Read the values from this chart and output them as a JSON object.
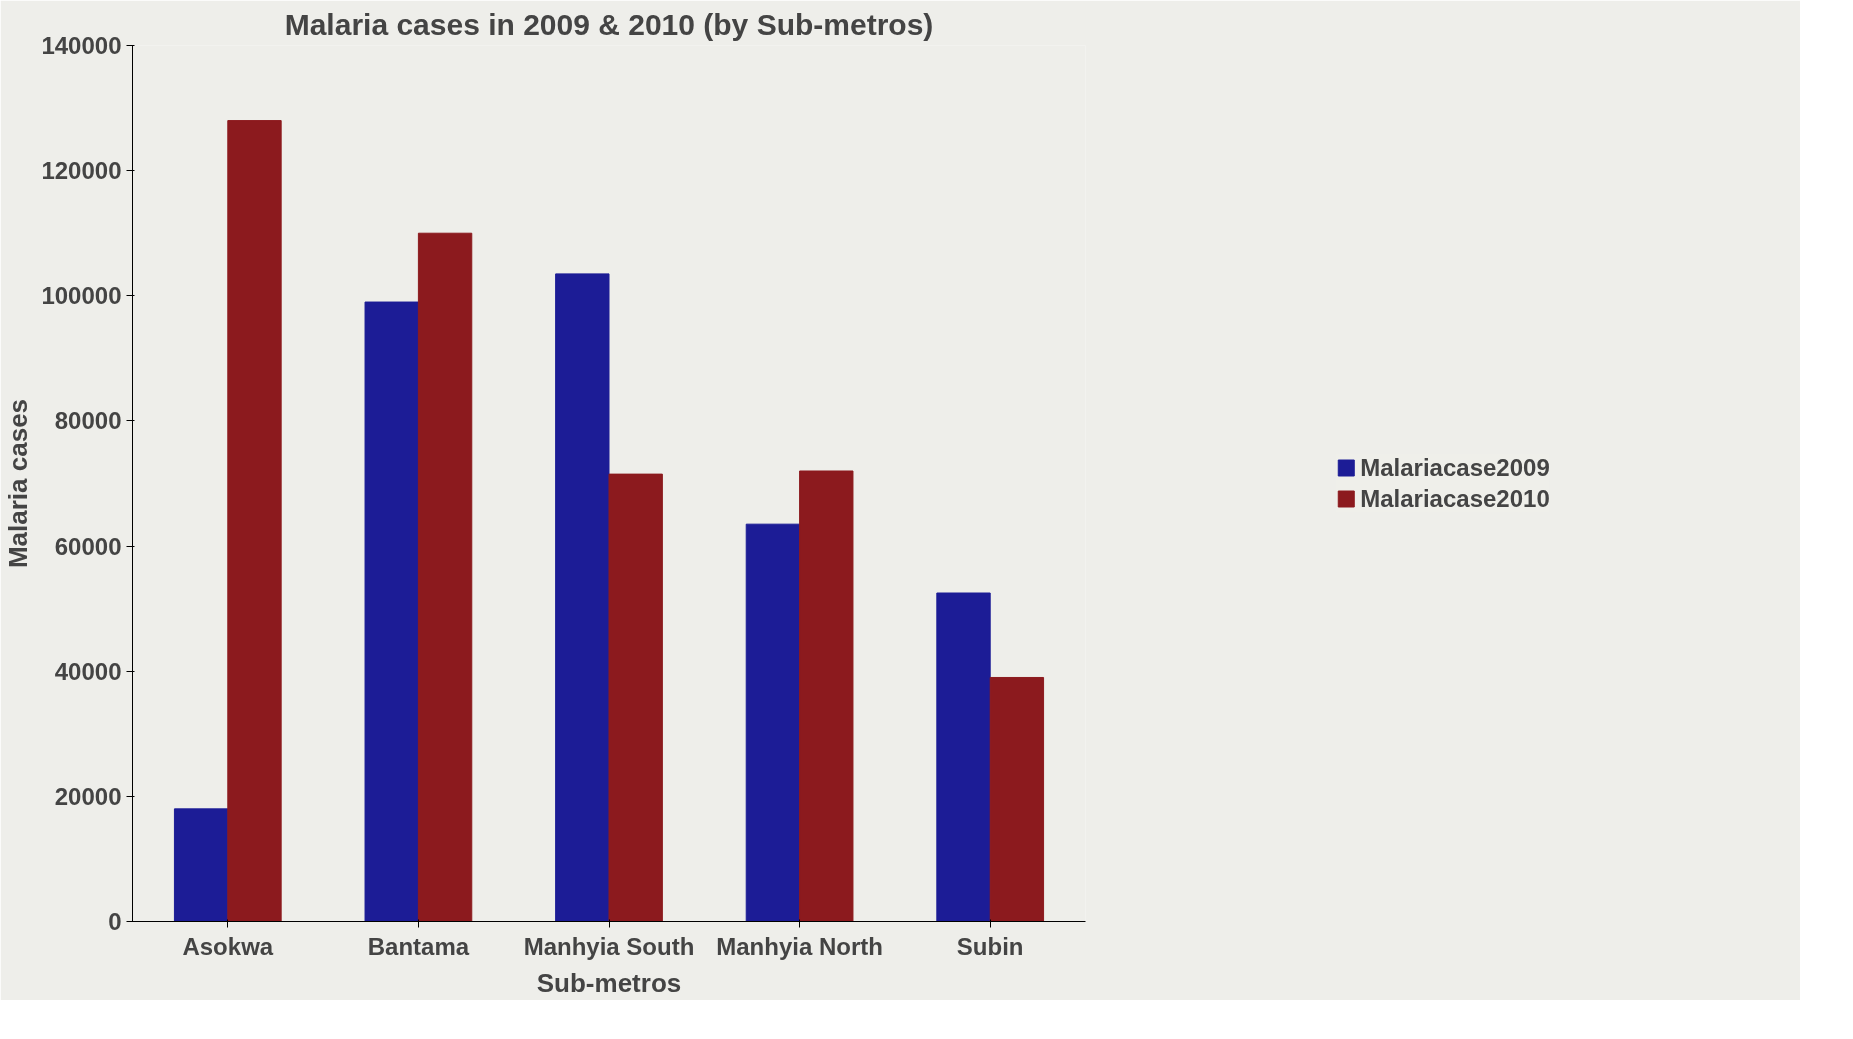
{
  "chart_data": {
    "type": "bar",
    "title": "Malaria cases in 2009 & 2010 (by Sub-metros)",
    "xlabel": "Sub-metros",
    "ylabel": "Malaria cases",
    "categories": [
      "Asokwa",
      "Bantama",
      "Manhyia South",
      "Manhyia North",
      "Subin"
    ],
    "series": [
      {
        "name": "Malariacase2009",
        "color": "#1c1c96",
        "values": [
          18000,
          99000,
          103500,
          63500,
          52500
        ]
      },
      {
        "name": "Malariacase2010",
        "color": "#8c1a1e",
        "values": [
          128000,
          110000,
          71500,
          72000,
          39000
        ]
      }
    ],
    "ylim": [
      0,
      140000
    ],
    "yticks": [
      0,
      20000,
      40000,
      60000,
      80000,
      100000,
      120000,
      140000
    ],
    "grid": false,
    "legend": "right"
  }
}
